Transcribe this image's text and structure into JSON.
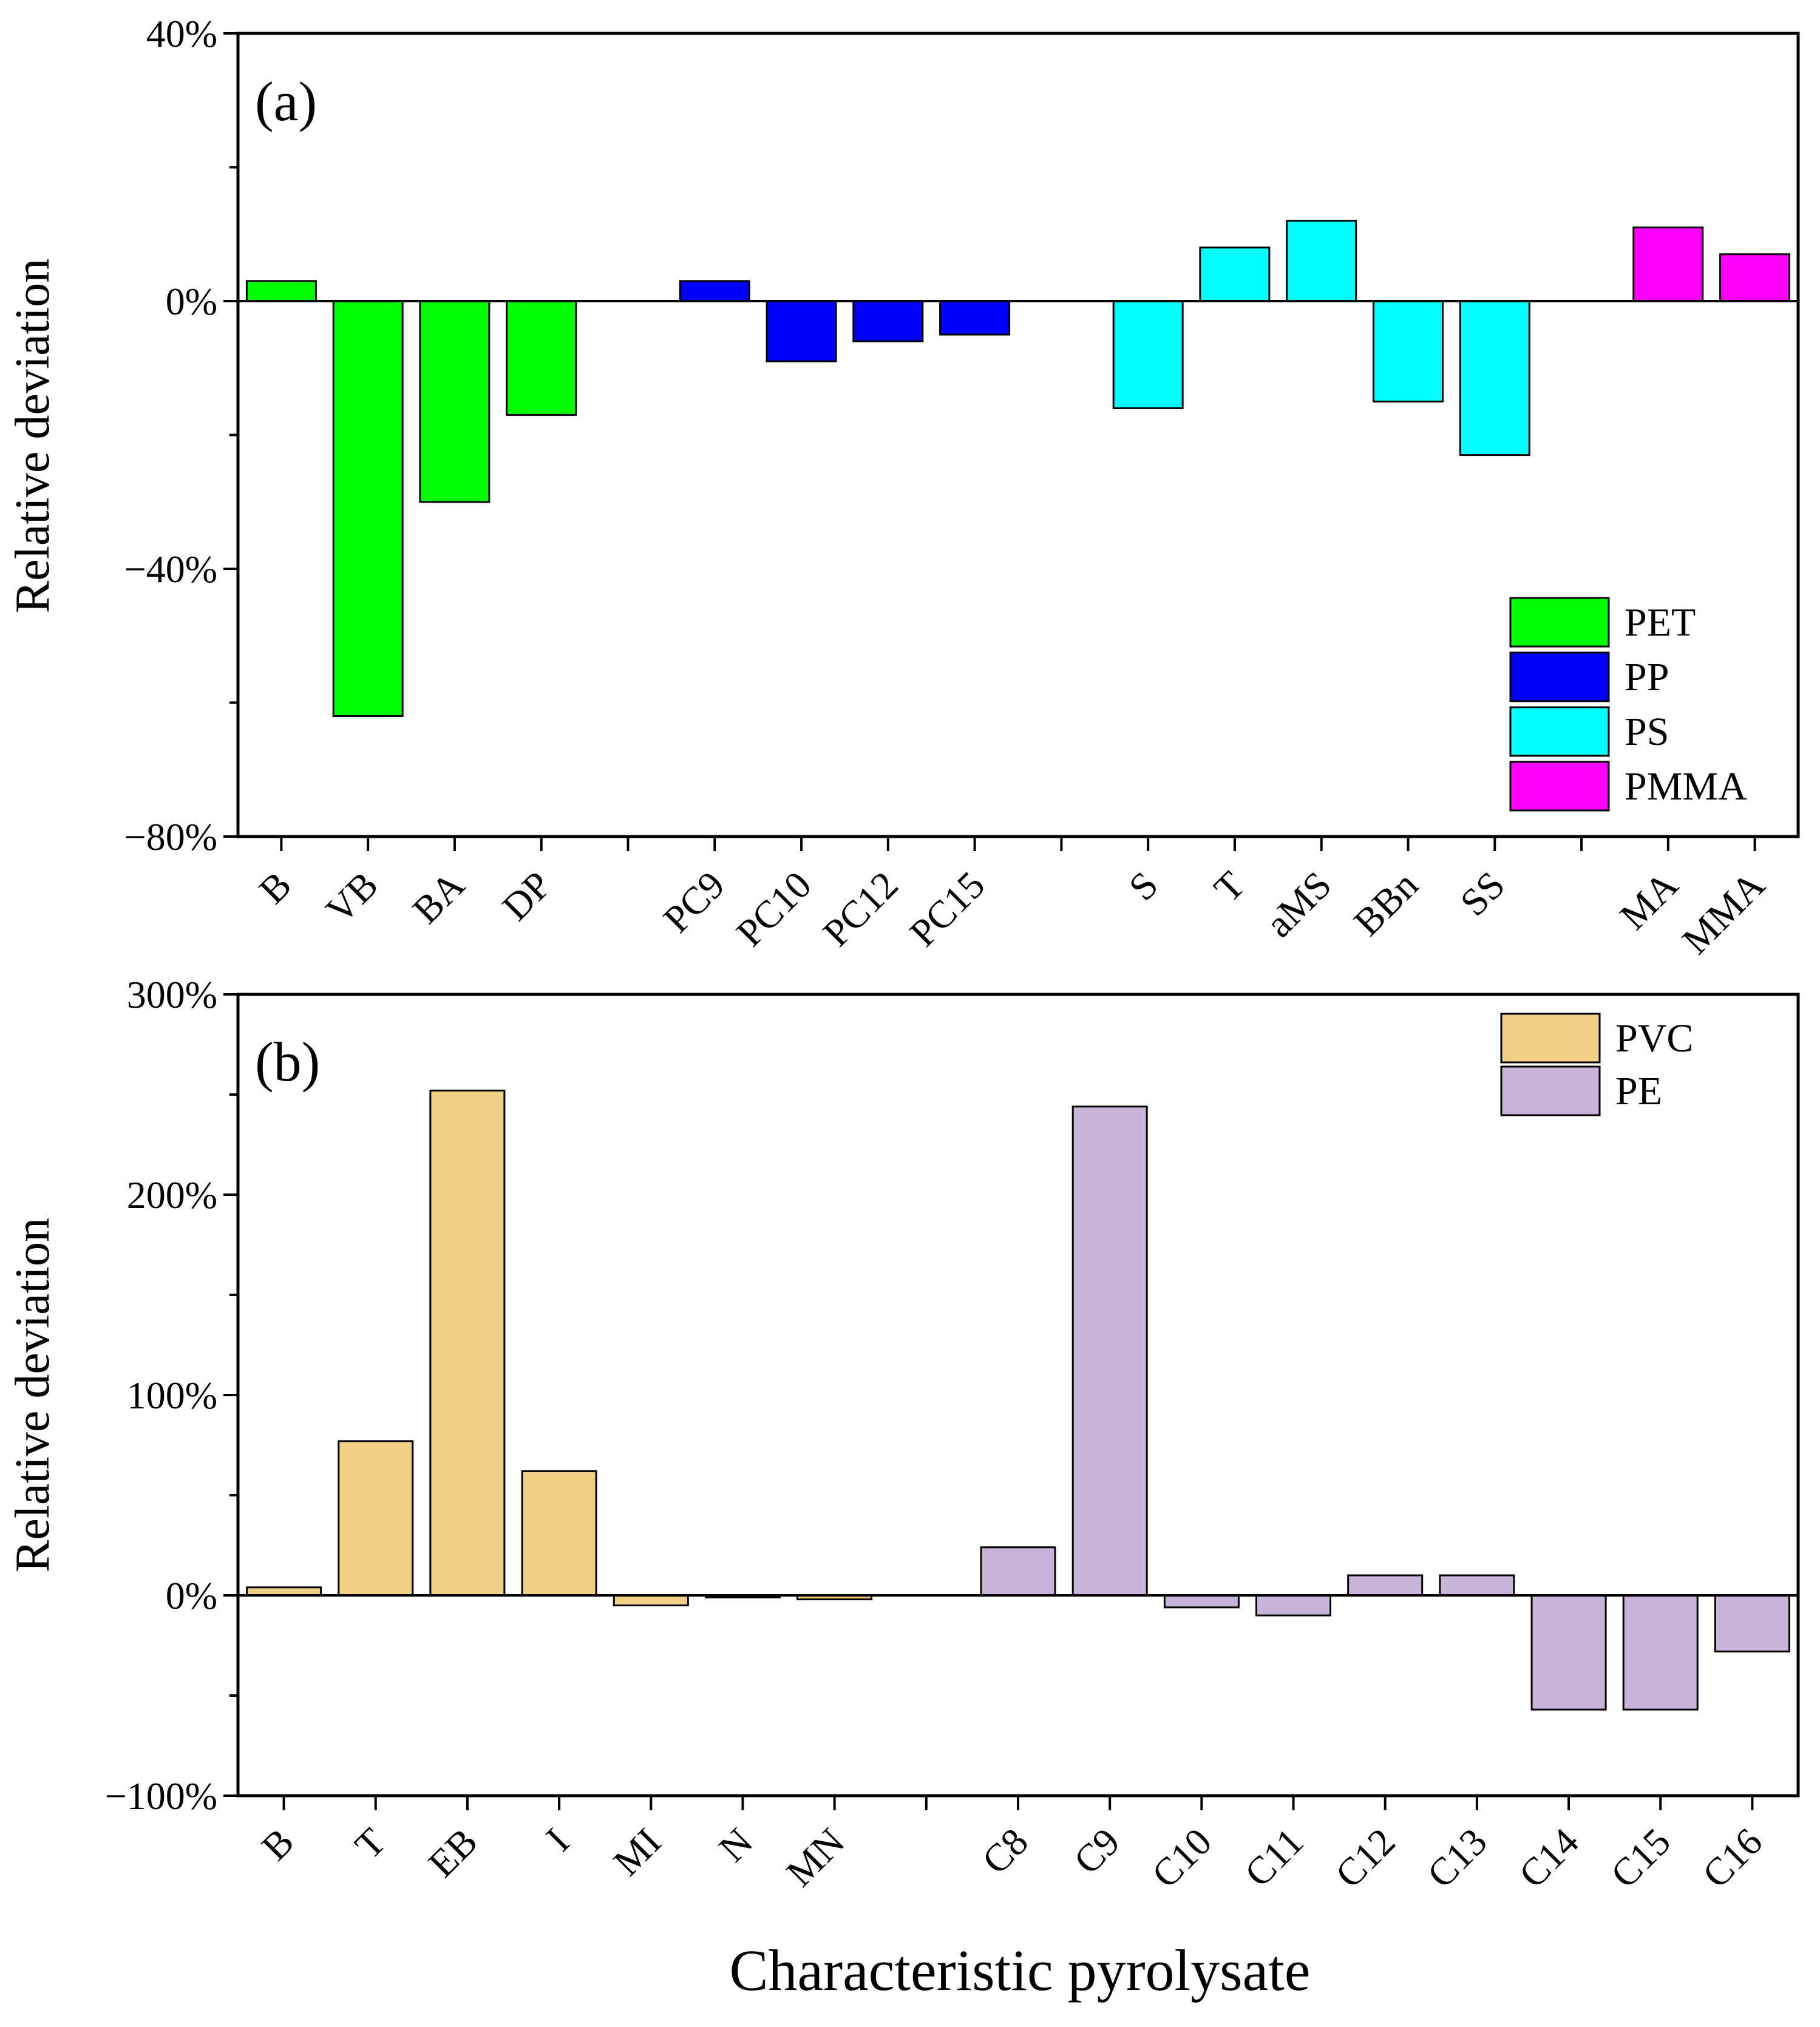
{
  "figure": {
    "xlabel": "Characteristic pyrolysate"
  },
  "chart_data": [
    {
      "type": "bar",
      "panel_label": "(a)",
      "ylabel": "Relative deviation",
      "ylim": [
        -80,
        40
      ],
      "yticks": [
        -80,
        -40,
        0,
        40
      ],
      "ytick_labels": [
        "−80%",
        "−40%",
        "0%",
        "40%"
      ],
      "minor_step": 20,
      "legend_position": "lower-right",
      "series": [
        {
          "name": "PET",
          "color": "#00ff00",
          "categories": [
            "B",
            "VB",
            "BA",
            "DP"
          ],
          "slots": [
            0,
            1,
            2,
            3
          ],
          "values": [
            3,
            -62,
            -30,
            -17
          ]
        },
        {
          "name": "PP",
          "color": "#0000ff",
          "categories": [
            "PC9",
            "PC10",
            "PC12",
            "PC15"
          ],
          "slots": [
            5,
            6,
            7,
            8
          ],
          "values": [
            3,
            -9,
            -6,
            -5
          ]
        },
        {
          "name": "PS",
          "color": "#00ffff",
          "categories": [
            "S",
            "T",
            "aMS",
            "BBn",
            "SS"
          ],
          "slots": [
            10,
            11,
            12,
            13,
            14
          ],
          "values": [
            -16,
            8,
            12,
            -15,
            -23
          ]
        },
        {
          "name": "PMMA",
          "color": "#ff00ff",
          "categories": [
            "MA",
            "MMA"
          ],
          "slots": [
            16,
            17
          ],
          "values": [
            11,
            7
          ]
        }
      ],
      "slot_count": 18
    },
    {
      "type": "bar",
      "panel_label": "(b)",
      "ylabel": "Relative deviation",
      "ylim": [
        -100,
        300
      ],
      "yticks": [
        -100,
        0,
        100,
        200,
        300
      ],
      "ytick_labels": [
        "−100%",
        "0%",
        "100%",
        "200%",
        "300%"
      ],
      "minor_step": 50,
      "legend_position": "top-right",
      "series": [
        {
          "name": "PVC",
          "color": "#f0d086",
          "categories": [
            "B",
            "T",
            "EB",
            "I",
            "MI",
            "N",
            "MN"
          ],
          "slots": [
            0,
            1,
            2,
            3,
            4,
            5,
            6
          ],
          "values": [
            4,
            77,
            252,
            62,
            -5,
            -1,
            -2
          ]
        },
        {
          "name": "PE",
          "color": "#c8b4d8",
          "categories": [
            "C8",
            "C9",
            "C10",
            "C11",
            "C12",
            "C13",
            "C14",
            "C15",
            "C16"
          ],
          "slots": [
            8,
            9,
            10,
            11,
            12,
            13,
            14,
            15,
            16
          ],
          "values": [
            24,
            244,
            -6,
            -10,
            10,
            10,
            -57,
            -57,
            -28
          ]
        }
      ],
      "slot_count": 17
    }
  ]
}
